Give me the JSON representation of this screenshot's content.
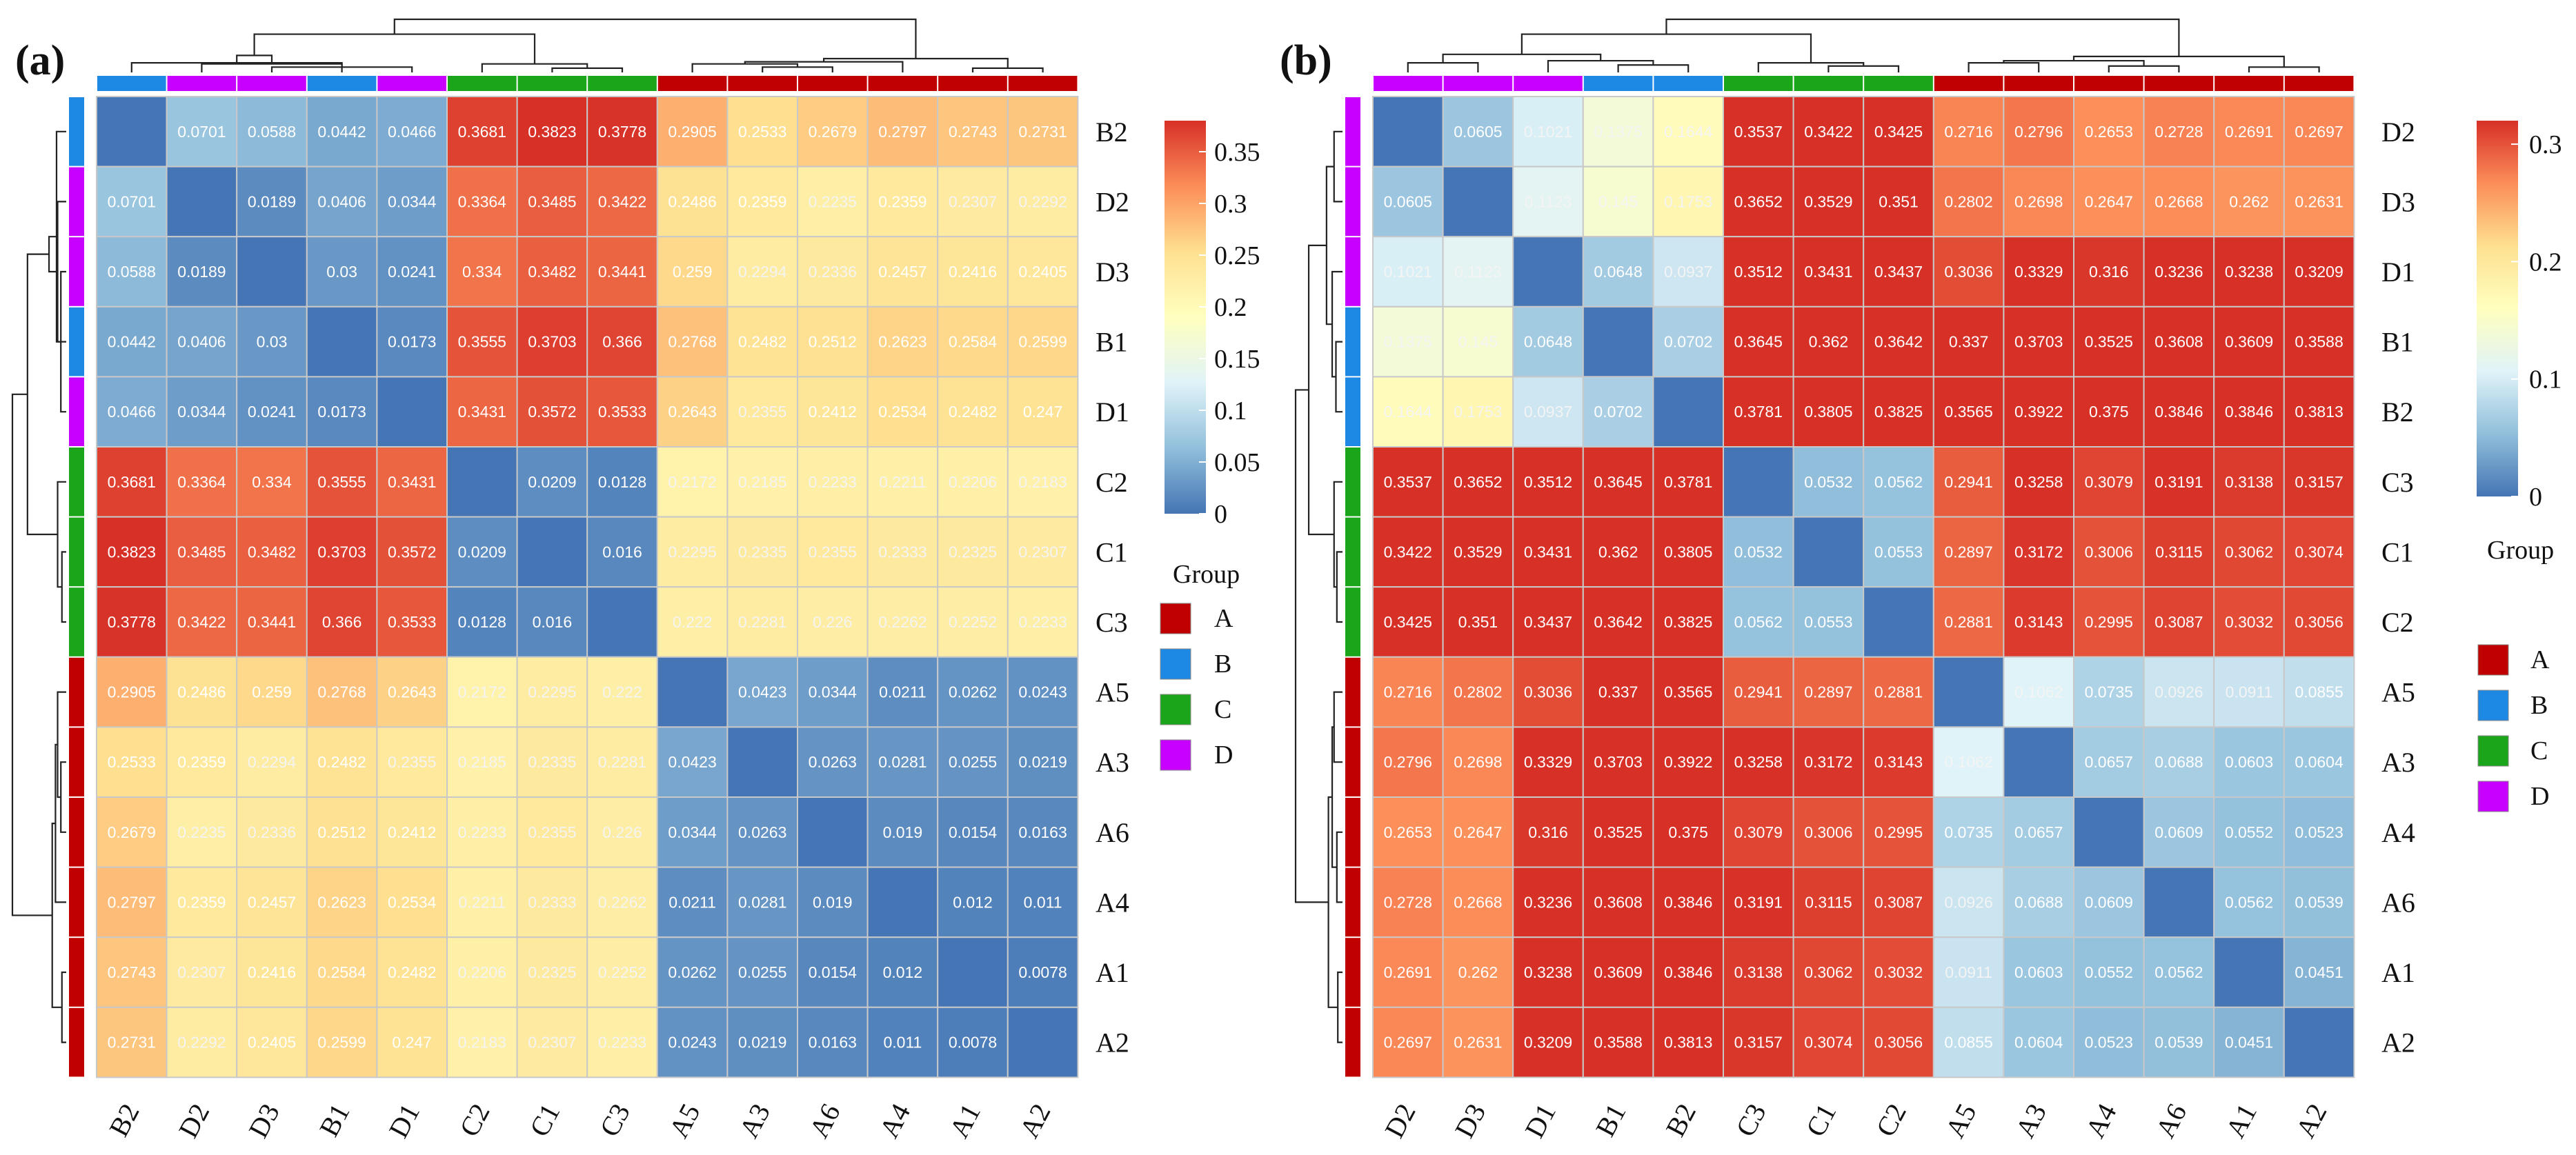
{
  "group_colors": {
    "A": "#c00000",
    "B": "#1e88e5",
    "C": "#1aa51a",
    "D": "#c800ff"
  },
  "colorscale": [
    "#4575b4",
    "#91bfdb",
    "#e0f3f8",
    "#ffffbf",
    "#fee090",
    "#fc8d59",
    "#d73027"
  ],
  "chart_data": [
    {
      "type": "heatmap",
      "panel_label": "(a)",
      "rows": [
        "B2",
        "D2",
        "D3",
        "B1",
        "D1",
        "C2",
        "C1",
        "C3",
        "A5",
        "A3",
        "A6",
        "A4",
        "A1",
        "A2"
      ],
      "cols": [
        "B2",
        "D2",
        "D3",
        "B1",
        "D1",
        "C2",
        "C1",
        "C3",
        "A5",
        "A3",
        "A6",
        "A4",
        "A1",
        "A2"
      ],
      "groups": [
        "B",
        "D",
        "D",
        "B",
        "D",
        "C",
        "C",
        "C",
        "A",
        "A",
        "A",
        "A",
        "A",
        "A"
      ],
      "values": [
        [
          null,
          0.0701,
          0.0588,
          0.0442,
          0.0466,
          0.3681,
          0.3823,
          0.3778,
          0.2905,
          0.2533,
          0.2679,
          0.2797,
          0.2743,
          0.2731
        ],
        [
          0.0701,
          null,
          0.0189,
          0.0406,
          0.0344,
          0.3364,
          0.3485,
          0.3422,
          0.2486,
          0.2359,
          0.2235,
          0.2359,
          0.2307,
          0.2292
        ],
        [
          0.0588,
          0.0189,
          null,
          0.03,
          0.0241,
          0.334,
          0.3482,
          0.3441,
          0.259,
          0.2294,
          0.2336,
          0.2457,
          0.2416,
          0.2405
        ],
        [
          0.0442,
          0.0406,
          0.03,
          null,
          0.0173,
          0.3555,
          0.3703,
          0.366,
          0.2768,
          0.2482,
          0.2512,
          0.2623,
          0.2584,
          0.2599
        ],
        [
          0.0466,
          0.0344,
          0.0241,
          0.0173,
          null,
          0.3431,
          0.3572,
          0.3533,
          0.2643,
          0.2355,
          0.2412,
          0.2534,
          0.2482,
          0.247
        ],
        [
          0.3681,
          0.3364,
          0.334,
          0.3555,
          0.3431,
          null,
          0.0209,
          0.0128,
          0.2172,
          0.2185,
          0.2233,
          0.2211,
          0.2206,
          0.2183
        ],
        [
          0.3823,
          0.3485,
          0.3482,
          0.3703,
          0.3572,
          0.0209,
          null,
          0.016,
          0.2295,
          0.2335,
          0.2355,
          0.2333,
          0.2325,
          0.2307
        ],
        [
          0.3778,
          0.3422,
          0.3441,
          0.366,
          0.3533,
          0.0128,
          0.016,
          null,
          0.222,
          0.2281,
          0.226,
          0.2262,
          0.2252,
          0.2233
        ],
        [
          0.2905,
          0.2486,
          0.259,
          0.2768,
          0.2643,
          0.2172,
          0.2295,
          0.222,
          null,
          0.0423,
          0.0344,
          0.0211,
          0.0262,
          0.0243
        ],
        [
          0.2533,
          0.2359,
          0.2294,
          0.2482,
          0.2355,
          0.2185,
          0.2335,
          0.2281,
          0.0423,
          null,
          0.0263,
          0.0281,
          0.0255,
          0.0219
        ],
        [
          0.2679,
          0.2235,
          0.2336,
          0.2512,
          0.2412,
          0.2233,
          0.2355,
          0.226,
          0.0344,
          0.0263,
          null,
          0.019,
          0.0154,
          0.0163
        ],
        [
          0.2797,
          0.2359,
          0.2457,
          0.2623,
          0.2534,
          0.2211,
          0.2333,
          0.2262,
          0.0211,
          0.0281,
          0.019,
          null,
          0.012,
          0.011
        ],
        [
          0.2743,
          0.2307,
          0.2416,
          0.2584,
          0.2482,
          0.2206,
          0.2325,
          0.2252,
          0.0262,
          0.0255,
          0.0154,
          0.012,
          null,
          0.0078
        ],
        [
          0.2731,
          0.2292,
          0.2405,
          0.2599,
          0.247,
          0.2183,
          0.2307,
          0.2233,
          0.0243,
          0.0219,
          0.0163,
          0.011,
          0.0078,
          null
        ]
      ],
      "value_range": [
        0,
        0.38
      ],
      "legend_ticks": [
        0,
        0.05,
        0.1,
        0.15,
        0.2,
        0.25,
        0.3,
        0.35
      ],
      "legend_tick_labels": [
        "0",
        "0.05",
        "0.1",
        "0.15",
        "0.2",
        "0.25",
        "0.3",
        "0.35"
      ],
      "group_legend_title": "Group",
      "group_legend": [
        "A",
        "B",
        "C",
        "D"
      ]
    },
    {
      "type": "heatmap",
      "panel_label": "(b)",
      "rows": [
        "D2",
        "D3",
        "D1",
        "B1",
        "B2",
        "C3",
        "C1",
        "C2",
        "A5",
        "A3",
        "A4",
        "A6",
        "A1",
        "A2"
      ],
      "cols": [
        "D2",
        "D3",
        "D1",
        "B1",
        "B2",
        "C3",
        "C1",
        "C2",
        "A5",
        "A3",
        "A4",
        "A6",
        "A1",
        "A2"
      ],
      "groups": [
        "D",
        "D",
        "D",
        "B",
        "B",
        "C",
        "C",
        "C",
        "A",
        "A",
        "A",
        "A",
        "A",
        "A"
      ],
      "values": [
        [
          null,
          0.0605,
          0.1021,
          0.1375,
          0.1644,
          0.3537,
          0.3422,
          0.3425,
          0.2716,
          0.2796,
          0.2653,
          0.2728,
          0.2691,
          0.2697
        ],
        [
          0.0605,
          null,
          0.1123,
          0.145,
          0.1753,
          0.3652,
          0.3529,
          0.351,
          0.2802,
          0.2698,
          0.2647,
          0.2668,
          0.262,
          0.2631
        ],
        [
          0.1021,
          0.1123,
          null,
          0.0648,
          0.0937,
          0.3512,
          0.3431,
          0.3437,
          0.3036,
          0.3329,
          0.316,
          0.3236,
          0.3238,
          0.3209
        ],
        [
          0.1375,
          0.145,
          0.0648,
          null,
          0.0702,
          0.3645,
          0.362,
          0.3642,
          0.337,
          0.3703,
          0.3525,
          0.3608,
          0.3609,
          0.3588
        ],
        [
          0.1644,
          0.1753,
          0.0937,
          0.0702,
          null,
          0.3781,
          0.3805,
          0.3825,
          0.3565,
          0.3922,
          0.375,
          0.3846,
          0.3846,
          0.3813
        ],
        [
          0.3537,
          0.3652,
          0.3512,
          0.3645,
          0.3781,
          null,
          0.0532,
          0.0562,
          0.2941,
          0.3258,
          0.3079,
          0.3191,
          0.3138,
          0.3157
        ],
        [
          0.3422,
          0.3529,
          0.3431,
          0.362,
          0.3805,
          0.0532,
          null,
          0.0553,
          0.2897,
          0.3172,
          0.3006,
          0.3115,
          0.3062,
          0.3074
        ],
        [
          0.3425,
          0.351,
          0.3437,
          0.3642,
          0.3825,
          0.0562,
          0.0553,
          null,
          0.2881,
          0.3143,
          0.2995,
          0.3087,
          0.3032,
          0.3056
        ],
        [
          0.2716,
          0.2802,
          0.3036,
          0.337,
          0.3565,
          0.2941,
          0.2897,
          0.2881,
          null,
          0.1062,
          0.0735,
          0.0926,
          0.0911,
          0.0855
        ],
        [
          0.2796,
          0.2698,
          0.3329,
          0.3703,
          0.3922,
          0.3258,
          0.3172,
          0.3143,
          0.1062,
          null,
          0.0657,
          0.0688,
          0.0603,
          0.0604
        ],
        [
          0.2653,
          0.2647,
          0.316,
          0.3525,
          0.375,
          0.3079,
          0.3006,
          0.2995,
          0.0735,
          0.0657,
          null,
          0.0609,
          0.0552,
          0.0523
        ],
        [
          0.2728,
          0.2668,
          0.3236,
          0.3608,
          0.3846,
          0.3191,
          0.3115,
          0.3087,
          0.0926,
          0.0688,
          0.0609,
          null,
          0.0562,
          0.0539
        ],
        [
          0.2691,
          0.262,
          0.3238,
          0.3609,
          0.3846,
          0.3138,
          0.3062,
          0.3032,
          0.0911,
          0.0603,
          0.0552,
          0.0562,
          null,
          0.0451
        ],
        [
          0.2697,
          0.2631,
          0.3209,
          0.3588,
          0.3813,
          0.3157,
          0.3074,
          0.3056,
          0.0855,
          0.0604,
          0.0523,
          0.0539,
          0.0451,
          null
        ]
      ],
      "value_range": [
        0,
        0.32
      ],
      "legend_ticks": [
        0,
        0.1,
        0.2,
        0.3
      ],
      "legend_tick_labels": [
        "0",
        "0.1",
        "0.2",
        "0.3"
      ],
      "group_legend_title": "Group",
      "group_legend": [
        "A",
        "B",
        "C",
        "D"
      ]
    }
  ]
}
